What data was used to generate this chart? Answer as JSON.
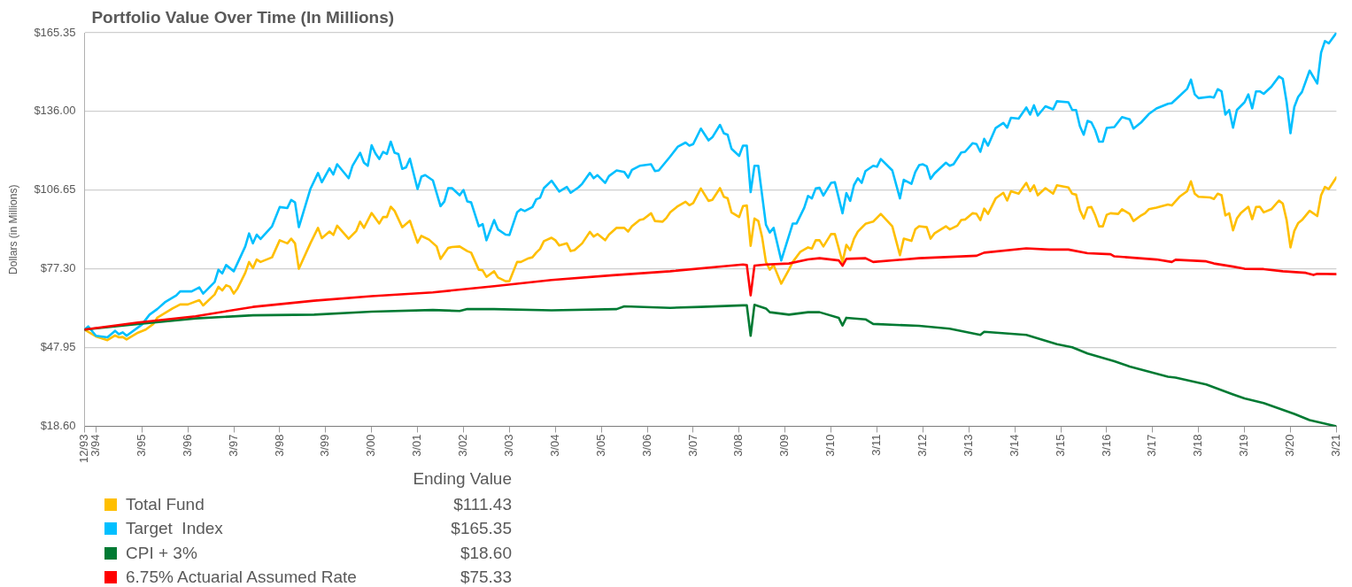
{
  "chart_data": {
    "type": "line",
    "title": "Portfolio Value Over Time (In Millions)",
    "ylabel": "Dollars (in Millions)",
    "xlim": [
      "1993-12",
      "2021-03"
    ],
    "xticks": [
      {
        "value": "1993-12",
        "label": "12/93"
      },
      {
        "value": "1994-03",
        "label": "3/94"
      },
      {
        "value": "1995-03",
        "label": "3/95"
      },
      {
        "value": "1996-03",
        "label": "3/96"
      },
      {
        "value": "1997-03",
        "label": "3/97"
      },
      {
        "value": "1998-03",
        "label": "3/98"
      },
      {
        "value": "1999-03",
        "label": "3/99"
      },
      {
        "value": "2000-03",
        "label": "3/00"
      },
      {
        "value": "2001-03",
        "label": "3/01"
      },
      {
        "value": "2002-03",
        "label": "3/02"
      },
      {
        "value": "2003-03",
        "label": "3/03"
      },
      {
        "value": "2004-03",
        "label": "3/04"
      },
      {
        "value": "2005-03",
        "label": "3/05"
      },
      {
        "value": "2006-03",
        "label": "3/06"
      },
      {
        "value": "2007-03",
        "label": "3/07"
      },
      {
        "value": "2008-03",
        "label": "3/08"
      },
      {
        "value": "2009-03",
        "label": "3/09"
      },
      {
        "value": "2010-03",
        "label": "3/10"
      },
      {
        "value": "2011-03",
        "label": "3/11"
      },
      {
        "value": "2012-03",
        "label": "3/12"
      },
      {
        "value": "2013-03",
        "label": "3/13"
      },
      {
        "value": "2014-03",
        "label": "3/14"
      },
      {
        "value": "2015-03",
        "label": "3/15"
      },
      {
        "value": "2016-03",
        "label": "3/16"
      },
      {
        "value": "2017-03",
        "label": "3/17"
      },
      {
        "value": "2018-03",
        "label": "3/18"
      },
      {
        "value": "2019-03",
        "label": "3/19"
      },
      {
        "value": "2020-03",
        "label": "3/20"
      },
      {
        "value": "2021-03",
        "label": "3/21"
      }
    ],
    "ylim": [
      18.6,
      165.35
    ],
    "yticks": [
      {
        "value": 18.6,
        "label": "$18.60"
      },
      {
        "value": 47.95,
        "label": "$47.95"
      },
      {
        "value": 77.3,
        "label": "$77.30"
      },
      {
        "value": 106.65,
        "label": "$106.65"
      },
      {
        "value": 136,
        "label": "$136.00"
      },
      {
        "value": 165.35,
        "label": "$165.35"
      }
    ],
    "grid": "y",
    "legend": "bottom left",
    "marker": "none",
    "line_style": "solid",
    "annotations": [
      "Ending Value",
      "$111.43",
      "$165.35",
      "$18.60",
      "$75.33"
    ],
    "series": [
      {
        "name": "Total Fund",
        "color": "#ffbf00",
        "x": [
          "1993-12",
          "1994-03",
          "1994-06",
          "1994-08",
          "1994-09",
          "1994-10",
          "1994-11",
          "1995-02",
          "1995-04",
          "1995-06",
          "1995-07",
          "1995-09",
          "1995-11",
          "1996-01",
          "1996-03",
          "1996-06",
          "1996-07",
          "1996-10",
          "1996-11",
          "1996-12",
          "1997-01",
          "1997-02",
          "1997-03",
          "1997-04",
          "1997-06",
          "1997-07",
          "1997-08",
          "1997-09",
          "1997-10",
          "1998-01",
          "1998-03",
          "1998-05",
          "1998-06",
          "1998-07",
          "1998-08",
          "1998-11",
          "1999-01",
          "1999-02",
          "1999-04",
          "1999-05",
          "1999-06",
          "1999-09",
          "1999-11",
          "1999-12",
          "2000-01",
          "2000-03",
          "2000-05",
          "2000-06",
          "2000-07",
          "2000-08",
          "2000-09",
          "2000-11",
          "2001-01",
          "2001-03",
          "2001-04",
          "2001-06",
          "2001-08",
          "2001-09",
          "2001-11",
          "2001-12",
          "2002-02",
          "2002-04",
          "2002-05",
          "2002-07",
          "2002-08",
          "2002-09",
          "2002-11",
          "2002-12",
          "2003-02",
          "2003-03",
          "2003-05",
          "2003-06",
          "2003-08",
          "2003-09",
          "2003-10",
          "2003-11",
          "2003-12",
          "2004-02",
          "2004-03",
          "2004-04",
          "2004-06",
          "2004-07",
          "2004-08",
          "2004-10",
          "2004-12",
          "2005-01",
          "2005-02",
          "2005-04",
          "2005-05",
          "2005-07",
          "2005-09",
          "2005-10",
          "2005-11",
          "2006-01",
          "2006-02",
          "2006-04",
          "2006-05",
          "2006-07",
          "2006-08",
          "2006-09",
          "2006-11",
          "2007-01",
          "2007-02",
          "2007-03",
          "2007-05",
          "2007-07",
          "2007-08",
          "2007-10",
          "2007-11",
          "2007-12",
          "2008-01",
          "2008-03",
          "2008-04",
          "2008-05",
          "2008-06",
          "2008-07",
          "2008-08",
          "2008-09",
          "2008-10",
          "2008-11",
          "2008-12",
          "2009-02",
          "2009-04",
          "2009-05",
          "2009-07",
          "2009-09",
          "2009-10",
          "2009-11",
          "2009-12",
          "2010-01",
          "2010-03",
          "2010-04",
          "2010-06",
          "2010-07",
          "2010-08",
          "2010-09",
          "2010-10",
          "2010-12",
          "2011-02",
          "2011-04",
          "2011-07",
          "2011-09",
          "2011-10",
          "2011-12",
          "2012-01",
          "2012-02",
          "2012-04",
          "2012-05",
          "2012-06",
          "2012-09",
          "2012-10",
          "2012-12",
          "2013-01",
          "2013-02",
          "2013-04",
          "2013-05",
          "2013-06",
          "2013-07",
          "2013-08",
          "2013-10",
          "2013-12",
          "2014-01",
          "2014-02",
          "2014-04",
          "2014-06",
          "2014-07",
          "2014-08",
          "2014-09",
          "2014-11",
          "2015-01",
          "2015-02",
          "2015-05",
          "2015-06",
          "2015-07",
          "2015-08",
          "2015-09",
          "2015-10",
          "2015-11",
          "2015-12",
          "2016-01",
          "2016-02",
          "2016-03",
          "2016-04",
          "2016-06",
          "2016-07",
          "2016-09",
          "2016-10",
          "2016-12",
          "2017-01",
          "2017-02",
          "2017-04",
          "2017-07",
          "2017-08",
          "2017-10",
          "2017-12",
          "2018-01",
          "2018-02",
          "2018-03",
          "2018-06",
          "2018-07",
          "2018-08",
          "2018-09",
          "2018-10",
          "2018-11",
          "2018-12",
          "2019-01",
          "2019-02",
          "2019-04",
          "2019-05",
          "2019-06",
          "2019-07",
          "2019-08",
          "2019-10",
          "2019-12",
          "2020-01",
          "2020-02",
          "2020-03",
          "2020-04",
          "2020-05",
          "2020-06",
          "2020-08",
          "2020-10",
          "2020-11",
          "2020-12",
          "2021-01",
          "2021-03"
        ],
        "values": [
          54.66,
          52.12,
          50.73,
          52.47,
          51.77,
          51.89,
          50.96,
          53.51,
          54.66,
          56.75,
          59.06,
          60.79,
          62.53,
          64.03,
          64.03,
          65.65,
          63.68,
          67.73,
          70.62,
          69.24,
          71.2,
          70.62,
          68.08,
          70.05,
          75.83,
          79.88,
          77.56,
          80.8,
          79.88,
          81.61,
          87.97,
          86.82,
          88.55,
          86.82,
          77.33,
          86.82,
          92.6,
          88.78,
          91.21,
          89.94,
          93.41,
          88.55,
          91.44,
          94.91,
          92.6,
          98.15,
          94.22,
          96.65,
          96.65,
          100.47,
          98.96,
          92.83,
          95.26,
          87.05,
          89.59,
          88.21,
          85.66,
          81.03,
          85.08,
          85.43,
          85.66,
          83.93,
          83.35,
          76.99,
          76.76,
          74.33,
          76.41,
          74.09,
          72.71,
          72.71,
          79.88,
          79.88,
          81.27,
          81.61,
          83.35,
          84.74,
          87.62,
          88.9,
          87.97,
          86.01,
          86.82,
          83.93,
          84.27,
          86.82,
          91.1,
          89.36,
          90.29,
          87.97,
          90.06,
          92.6,
          92.6,
          91.21,
          93.18,
          95.49,
          95.84,
          98.04,
          95.14,
          94.91,
          96.3,
          98.38,
          100.7,
          102.32,
          101.04,
          101.85,
          107.29,
          102.66,
          103.01,
          107.41,
          104.17,
          103.59,
          98.38,
          96.65,
          100.7,
          100.93,
          85.89,
          96.07,
          95.14,
          89.13,
          79.88,
          76.99,
          78.72,
          71.78,
          76.99,
          79.88,
          83.69,
          85.31,
          84.85,
          87.97,
          87.97,
          85.66,
          90.29,
          90.29,
          79.88,
          86.24,
          84.27,
          88.55,
          91.21,
          94.1,
          94.91,
          97.8,
          93.18,
          82.42,
          88.55,
          87.74,
          92.02,
          93.18,
          92.83,
          88.55,
          90.52,
          93.18,
          92.02,
          93.41,
          95.49,
          95.72,
          98.04,
          97.8,
          95.49,
          99.77,
          97.8,
          103.59,
          105.67,
          102.78,
          106.25,
          105.32,
          109.37,
          106.25,
          108.45,
          104.74,
          107.41,
          105.32,
          108.45,
          107.64,
          105.32,
          104.97,
          99.19,
          96.07,
          100.12,
          100.35,
          97.23,
          93.18,
          93.18,
          97.46,
          98.04,
          97.8,
          99.54,
          97.8,
          95.14,
          97.23,
          98.04,
          99.54,
          100.12,
          101.28,
          100.93,
          104.17,
          106.25,
          109.95,
          105.32,
          104.17,
          103.94,
          103.36,
          105.32,
          104.74,
          97.23,
          98.04,
          91.67,
          96.07,
          98.04,
          100.47,
          95.84,
          100.35,
          100.47,
          98.38,
          99.54,
          102.78,
          101.62,
          95.49,
          85.31,
          91.44,
          94.34,
          95.49,
          98.96,
          96.99,
          104.74,
          107.87,
          107.06,
          111.43
        ]
      },
      {
        "name": "Target  Index",
        "color": "#00bfff",
        "x": [
          "1993-12",
          "1994-01",
          "1994-03",
          "1994-06",
          "1994-08",
          "1994-09",
          "1994-10",
          "1994-11",
          "1995-03",
          "1995-05",
          "1995-07",
          "1995-09",
          "1995-12",
          "1996-01",
          "1996-04",
          "1996-06",
          "1996-07",
          "1996-10",
          "1996-11",
          "1996-12",
          "1997-01",
          "1997-03",
          "1997-06",
          "1997-07",
          "1997-08",
          "1997-09",
          "1997-10",
          "1998-01",
          "1998-03",
          "1998-05",
          "1998-06",
          "1998-07",
          "1998-08",
          "1998-11",
          "1999-01",
          "1999-02",
          "1999-04",
          "1999-05",
          "1999-06",
          "1999-08",
          "1999-09",
          "1999-10",
          "1999-12",
          "2000-01",
          "2000-02",
          "2000-03",
          "2000-04",
          "2000-05",
          "2000-06",
          "2000-07",
          "2000-08",
          "2000-09",
          "2000-10",
          "2000-11",
          "2000-12",
          "2001-01",
          "2001-03",
          "2001-04",
          "2001-05",
          "2001-07",
          "2001-09",
          "2001-10",
          "2001-11",
          "2001-12",
          "2002-02",
          "2002-03",
          "2002-04",
          "2002-05",
          "2002-07",
          "2002-08",
          "2002-09",
          "2002-11",
          "2002-12",
          "2003-02",
          "2003-03",
          "2003-05",
          "2003-06",
          "2003-07",
          "2003-09",
          "2003-10",
          "2003-11",
          "2003-12",
          "2004-02",
          "2004-04",
          "2004-06",
          "2004-07",
          "2004-09",
          "2004-10",
          "2004-12",
          "2005-01",
          "2005-02",
          "2005-04",
          "2005-05",
          "2005-07",
          "2005-09",
          "2005-10",
          "2005-11",
          "2006-01",
          "2006-04",
          "2006-05",
          "2006-06",
          "2006-09",
          "2006-11",
          "2007-01",
          "2007-02",
          "2007-03",
          "2007-05",
          "2007-07",
          "2007-08",
          "2007-10",
          "2007-11",
          "2007-12",
          "2008-01",
          "2008-03",
          "2008-04",
          "2008-05",
          "2008-06",
          "2008-07",
          "2008-08",
          "2008-10",
          "2008-11",
          "2008-12",
          "2009-02",
          "2009-05",
          "2009-06",
          "2009-08",
          "2009-09",
          "2009-10",
          "2009-11",
          "2009-12",
          "2010-01",
          "2010-03",
          "2010-04",
          "2010-06",
          "2010-07",
          "2010-08",
          "2010-09",
          "2010-10",
          "2010-11",
          "2010-12",
          "2011-02",
          "2011-03",
          "2011-04",
          "2011-07",
          "2011-09",
          "2011-10",
          "2011-12",
          "2012-01",
          "2012-02",
          "2012-03",
          "2012-04",
          "2012-05",
          "2012-06",
          "2012-09",
          "2012-10",
          "2012-11",
          "2013-01",
          "2013-02",
          "2013-04",
          "2013-05",
          "2013-06",
          "2013-07",
          "2013-08",
          "2013-10",
          "2013-12",
          "2014-01",
          "2014-02",
          "2014-04",
          "2014-06",
          "2014-07",
          "2014-08",
          "2014-09",
          "2014-11",
          "2015-01",
          "2015-02",
          "2015-05",
          "2015-06",
          "2015-07",
          "2015-08",
          "2015-09",
          "2015-10",
          "2015-11",
          "2015-12",
          "2016-01",
          "2016-02",
          "2016-03",
          "2016-05",
          "2016-07",
          "2016-09",
          "2016-10",
          "2016-12",
          "2017-02",
          "2017-04",
          "2017-07",
          "2017-08",
          "2017-10",
          "2017-12",
          "2018-01",
          "2018-02",
          "2018-03",
          "2018-06",
          "2018-07",
          "2018-08",
          "2018-09",
          "2018-10",
          "2018-11",
          "2018-12",
          "2019-01",
          "2019-03",
          "2019-04",
          "2019-05",
          "2019-06",
          "2019-07",
          "2019-08",
          "2019-10",
          "2019-12",
          "2020-01",
          "2020-02",
          "2020-03",
          "2020-04",
          "2020-05",
          "2020-06",
          "2020-08",
          "2020-10",
          "2020-11",
          "2020-12",
          "2021-01",
          "2021-03"
        ],
        "values": [
          54.66,
          55.82,
          52.35,
          51.77,
          54.2,
          52.93,
          53.62,
          52.35,
          56.51,
          60.22,
          62.3,
          64.84,
          67.39,
          68.89,
          68.89,
          70.39,
          68.08,
          72.36,
          76.99,
          75.6,
          78.72,
          76.41,
          85.66,
          90.52,
          86.82,
          90.06,
          88.44,
          93.18,
          100.35,
          100,
          103.01,
          102.08,
          92.83,
          107.06,
          113.07,
          109.6,
          114.81,
          112.49,
          116.31,
          112.84,
          111.11,
          115.73,
          120.59,
          116.89,
          115.73,
          123.37,
          120.36,
          118.28,
          120.94,
          120.13,
          124.75,
          120.59,
          120.13,
          114.58,
          115.16,
          118.39,
          107.06,
          111.68,
          112.26,
          110.3,
          100.7,
          102.43,
          107.41,
          107.41,
          104.74,
          106.71,
          102.43,
          102.08,
          93.18,
          93.99,
          87.97,
          95.49,
          92.02,
          90.06,
          89.94,
          98.38,
          99.54,
          98.85,
          100.35,
          103.24,
          103.82,
          107.41,
          110.18,
          106.13,
          107.87,
          105.67,
          107.64,
          109.02,
          113.07,
          111.11,
          112.26,
          109.37,
          111.92,
          114,
          113.42,
          111.34,
          114.23,
          115.73,
          116.31,
          113.77,
          114,
          119.2,
          122.9,
          124.41,
          123.25,
          123.83,
          129.61,
          125.22,
          126.37,
          131,
          127.88,
          127.3,
          122.09,
          119.43,
          123.25,
          123.25,
          105.9,
          115.73,
          115.73,
          93.76,
          90.87,
          92.6,
          80.46,
          94.22,
          94.22,
          100.12,
          104.51,
          103.59,
          107.29,
          107.52,
          104.63,
          109.37,
          109.6,
          98.04,
          105.55,
          102.66,
          108.56,
          111.11,
          109.37,
          113.77,
          115.73,
          115.39,
          118.28,
          114,
          103.59,
          110.53,
          109.02,
          113.42,
          115.96,
          116.31,
          115.5,
          110.87,
          112.84,
          116.89,
          115.73,
          116.31,
          120.71,
          120.94,
          124.18,
          123.83,
          120.94,
          125.8,
          123.25,
          129.84,
          131.69,
          129.96,
          133.66,
          133.31,
          137.48,
          134.82,
          138.29,
          134.47,
          137.94,
          136.78,
          139.79,
          139.44,
          136.55,
          136.55,
          130.54,
          127.3,
          132.5,
          131.92,
          129.03,
          124.75,
          124.75,
          129.84,
          130.19,
          133.89,
          133.08,
          129.61,
          131.92,
          135.05,
          137.13,
          138.86,
          139.1,
          141.76,
          144.42,
          147.89,
          142.34,
          140.95,
          141.52,
          141.18,
          144.3,
          143.49,
          134.82,
          136.55,
          129.96,
          136.55,
          139.44,
          142.34,
          137.13,
          143.49,
          143.49,
          142.57,
          145.23,
          149.04,
          148.12,
          139.44,
          127.88,
          137.71,
          141.41,
          143.26,
          151.24,
          146.38,
          157.95,
          162.23,
          161.42,
          165.35
        ]
      },
      {
        "name": "CPI + 3%",
        "color": "#007a33",
        "x": [
          "1993-12",
          "1995-02",
          "1996-05",
          "1997-08",
          "1998-12",
          "2000-03",
          "2001-07",
          "2002-02",
          "2002-04",
          "2002-11",
          "2004-02",
          "2005-07",
          "2005-09",
          "2006-09",
          "2007-05",
          "2008-04",
          "2008-05",
          "2008-06",
          "2008-07",
          "2008-10",
          "2008-11",
          "2009-04",
          "2009-09",
          "2009-12",
          "2010-05",
          "2010-06",
          "2010-07",
          "2010-12",
          "2011-02",
          "2012-02",
          "2012-10",
          "2013-06",
          "2013-07",
          "2014-06",
          "2015-02",
          "2015-06",
          "2015-10",
          "2016-05",
          "2016-09",
          "2017-07",
          "2017-09",
          "2018-05",
          "2018-12",
          "2019-03",
          "2019-08",
          "2020-04",
          "2020-08",
          "2021-03"
        ],
        "values": [
          54.66,
          56.75,
          58.83,
          59.98,
          60.22,
          61.37,
          61.95,
          61.6,
          62.3,
          62.3,
          61.83,
          62.3,
          63.34,
          62.76,
          63.11,
          63.69,
          63.69,
          52.35,
          63.92,
          62.53,
          61.14,
          60.22,
          61.14,
          61.14,
          59.06,
          56.17,
          59.06,
          58.48,
          56.75,
          56.05,
          55.01,
          52.7,
          53.85,
          52.7,
          49.23,
          48.07,
          45.76,
          42.87,
          40.9,
          37.08,
          36.74,
          34.19,
          30.49,
          28.99,
          27.25,
          23.21,
          20.89,
          18.6
        ]
      },
      {
        "name": "6.75% Actuarial Assumed Rate",
        "color": "#ff0000",
        "x": [
          "1993-12",
          "1995-02",
          "1996-05",
          "1997-08",
          "1998-12",
          "2000-03",
          "2001-07",
          "2002-11",
          "2004-02",
          "2005-06",
          "2006-09",
          "2008-04",
          "2008-05",
          "2008-06",
          "2008-07",
          "2008-10",
          "2009-04",
          "2009-09",
          "2009-12",
          "2010-05",
          "2010-06",
          "2010-07",
          "2010-12",
          "2011-02",
          "2012-02",
          "2013-05",
          "2013-07",
          "2014-06",
          "2014-12",
          "2015-05",
          "2015-10",
          "2016-04",
          "2016-05",
          "2017-04",
          "2017-08",
          "2017-09",
          "2018-05",
          "2018-07",
          "2018-12",
          "2019-03",
          "2019-08",
          "2020-01",
          "2020-07",
          "2020-09",
          "2020-10",
          "2021-03"
        ],
        "values": [
          54.66,
          57.32,
          59.64,
          63.11,
          65.42,
          67.15,
          68.54,
          70.86,
          73.17,
          74.91,
          76.41,
          78.95,
          78.72,
          67.39,
          78.49,
          78.95,
          79.3,
          80.8,
          81.27,
          80.46,
          78.49,
          81.03,
          81.27,
          79.88,
          81.27,
          82.19,
          83.35,
          84.97,
          84.5,
          84.5,
          83.12,
          82.77,
          81.96,
          80.8,
          79.88,
          80.69,
          80.11,
          79.3,
          78.14,
          77.33,
          77.22,
          76.41,
          75.83,
          75.02,
          75.48,
          75.33
        ]
      }
    ]
  }
}
